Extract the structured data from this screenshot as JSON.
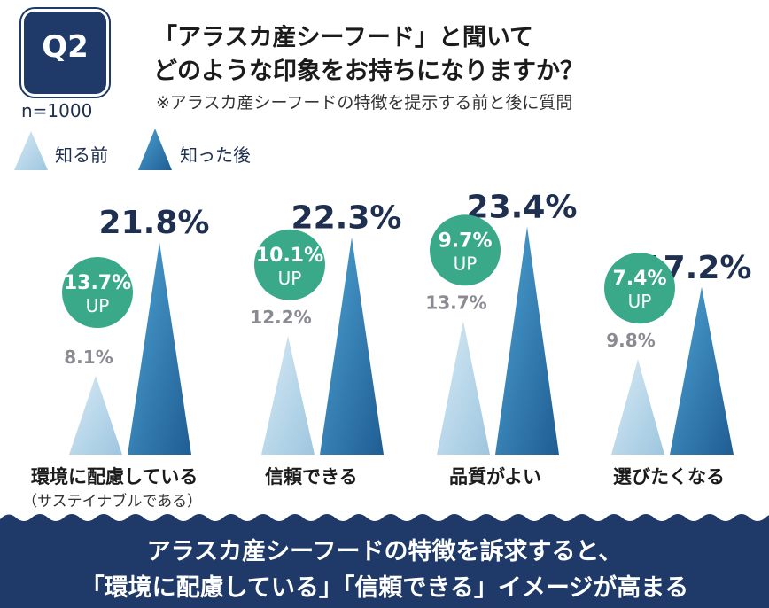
{
  "badge": "Q2",
  "sample": "n=1000",
  "title_line1": "「アラスカ産シーフード」と聞いて",
  "title_line2": "どのような印象をお持ちになりますか？",
  "note": "※アラスカ産シーフードの特徴を提示する前と後に質問",
  "legend": {
    "before": "知る前",
    "after": "知った後"
  },
  "colors": {
    "before": "#b9d8ea",
    "after": "#2f7fb4",
    "up_circle": "#3aa98a",
    "navy": "#1f3a68"
  },
  "chart_data": {
    "type": "bar",
    "categories": [
      "環境に配慮している",
      "信頼できる",
      "品質がよい",
      "選びたくなる"
    ],
    "category_notes": [
      "（サステイナブルである）",
      "",
      "",
      ""
    ],
    "series": [
      {
        "name": "知る前",
        "values": [
          8.1,
          12.2,
          13.7,
          9.8
        ]
      },
      {
        "name": "知った後",
        "values": [
          21.8,
          22.3,
          23.4,
          17.2
        ]
      }
    ],
    "value_labels_before": [
      "8.1%",
      "12.2%",
      "13.7%",
      "9.8%"
    ],
    "value_labels_after": [
      "21.8%",
      "22.3%",
      "23.4%",
      "17.2%"
    ],
    "up_values": [
      "13.7%",
      "10.1%",
      "9.7%",
      "7.4%"
    ],
    "up_text": "UP",
    "ylim": [
      0,
      25
    ]
  },
  "footer_line1": "アラスカ産シーフードの特徴を訴求すると、",
  "footer_line2": "「環境に配慮している」「信頼できる」イメージが高まる"
}
